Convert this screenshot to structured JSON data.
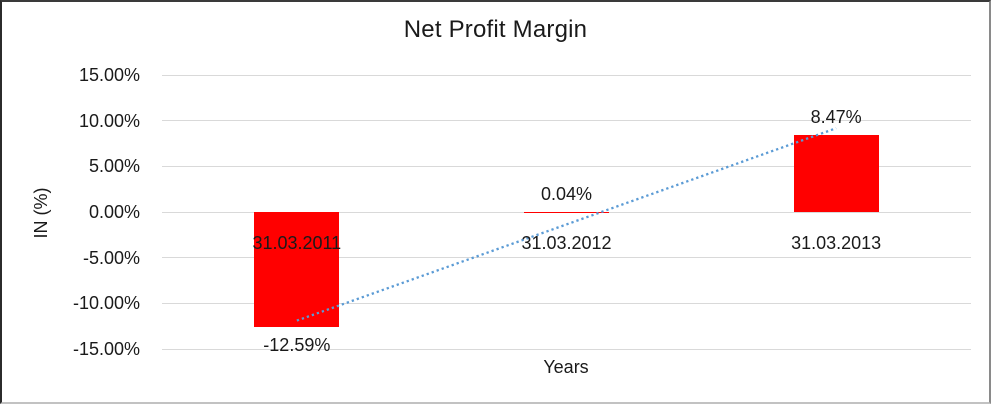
{
  "chart_data": {
    "type": "bar",
    "title": "Net Profit Margin",
    "xlabel": "Years",
    "ylabel": "IN (%)",
    "categories": [
      "31.03.2011",
      "31.03.2012",
      "31.03.2013"
    ],
    "values": [
      -12.59,
      0.04,
      8.47
    ],
    "data_labels": [
      "-12.59%",
      "0.04%",
      "8.47%"
    ],
    "ylim": [
      -15,
      15
    ],
    "y_axis": {
      "min": -15,
      "max": 15,
      "step": 5,
      "tick_values": [
        15,
        10,
        5,
        0,
        -5,
        -10,
        -15
      ],
      "tick_labels": [
        "15.00%",
        "10.00%",
        "5.00%",
        "0.00%",
        "-5.00%",
        "-10.00%",
        "-15.00%"
      ]
    },
    "grid": true,
    "legend": false,
    "trendline": {
      "type": "linear",
      "style": "dotted"
    },
    "colors": {
      "bar": "#ff0000",
      "trendline": "#5b9bd5",
      "gridline": "#d9d9d9",
      "text": "#1a1a1a",
      "background": "#ffffff"
    }
  }
}
